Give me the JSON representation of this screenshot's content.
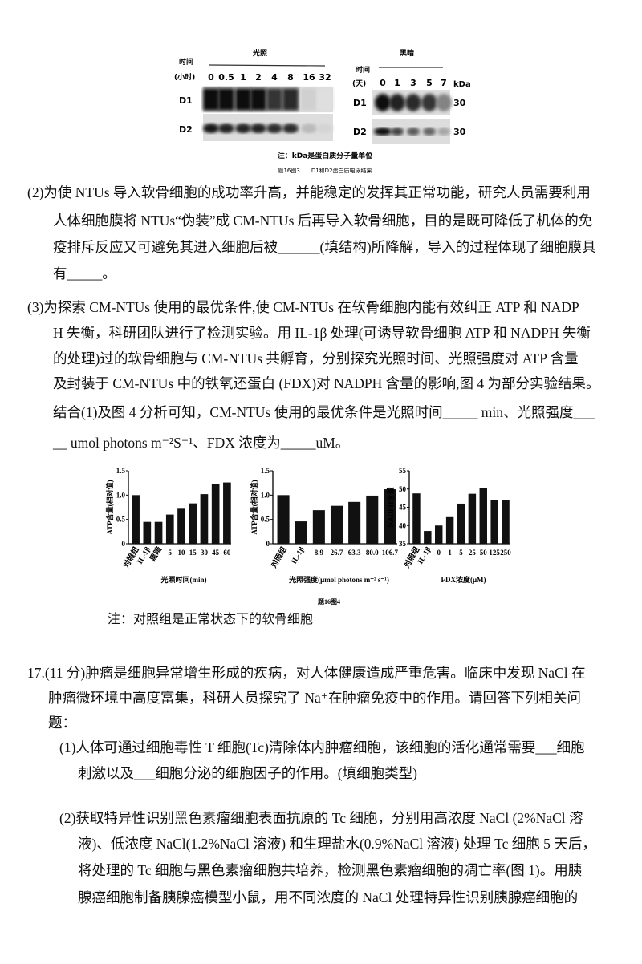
{
  "figure3": {
    "light_title": "光照",
    "dark_title": "黑暗",
    "time_label": "时间",
    "hours_label": "(小时)",
    "days_label": "(天)",
    "light_times": [
      "0",
      "0.5",
      "1",
      "2",
      "4",
      "8",
      "16",
      "32"
    ],
    "dark_times": [
      "0",
      "1",
      "3",
      "5",
      "7"
    ],
    "kda": "kDa",
    "rows": [
      "D1",
      "D2"
    ],
    "kda_values": [
      "30",
      "30"
    ],
    "light_band_intensity": {
      "D1": [
        1,
        1,
        1,
        1,
        0.8,
        0.85,
        0.1,
        0.03
      ],
      "D2": [
        0.95,
        0.9,
        0.9,
        0.9,
        0.85,
        0.85,
        0.2,
        0.08
      ]
    },
    "dark_band_intensity": {
      "D1": [
        1,
        0.9,
        0.85,
        0.8,
        0.45
      ],
      "D2": [
        1,
        0.75,
        0.65,
        0.6,
        0.3
      ]
    },
    "note": "注：kDa是蛋白质分子量单位",
    "caption": "题16图3　　D1和D2蛋白质电泳结果"
  },
  "q2": {
    "lines": [
      "(2)为使 NTUs 导入软骨细胞的成功率升高，并能稳定的发挥其正常功能，研究人员需要利用",
      "人体细胞膜将 NTUs“伪装”成 CM-NTUs 后再导入软骨细胞，目的是既可降低了机体的免",
      "疫排斥反应又可避免其进入细胞后被______(填结构)所降解，导入的过程体现了细胞膜具",
      "有_____。"
    ]
  },
  "q3": {
    "lines": [
      "(3)为探索 CM-NTUs 使用的最优条件,使 CM-NTUs 在软骨细胞内能有效纠正 ATP 和 NADP",
      "H 失衡，科研团队进行了检测实验。用 IL-1β 处理(可诱导软骨细胞 ATP 和 NADPH 失衡",
      "的处理)过的软骨细胞与 CM-NTUs 共孵育，分别探究光照时间、光照强度对 ATP 含量",
      "及封装于 CM-NTUs 中的铁氧还蛋白 (FDX)对 NADPH 含量的影响,图 4 为部分实验结果。",
      "结合(1)及图 4 分析可知，CM-NTUs 使用的最优条件是光照时间_____ min、光照强度___",
      "__ umol photons m⁻²S⁻¹、FDX 浓度为_____uM。"
    ]
  },
  "chart_data": [
    {
      "type": "bar",
      "categories": [
        "对照组",
        "IL-1β",
        "黑暗",
        "5",
        "10",
        "15",
        "30",
        "45",
        "60"
      ],
      "values": [
        1.0,
        0.45,
        0.45,
        0.6,
        0.72,
        0.83,
        1.02,
        1.22,
        1.26
      ],
      "ylabel": "ATP含量(相对值)",
      "xlabel": "光照时间(min)",
      "ylim": [
        0,
        1.5
      ],
      "yticks": [
        "0",
        "0.5",
        "1.0",
        "1.5"
      ]
    },
    {
      "type": "bar",
      "categories": [
        "对照组",
        "IL-1β",
        "8.9",
        "26.7",
        "63.3",
        "80.0",
        "106.7"
      ],
      "values": [
        1.0,
        0.46,
        0.69,
        0.78,
        0.86,
        0.99,
        1.12
      ],
      "ylabel": "ATP含量(相对值)",
      "xlabel": "光照强度(μmol photons m⁻² s⁻¹)",
      "ylim": [
        0,
        1.5
      ],
      "yticks": [
        "0",
        "0.5",
        "1.0",
        "1.5"
      ]
    },
    {
      "type": "bar",
      "categories": [
        "对照组",
        "IL-1β",
        "0",
        "1",
        "5",
        "25",
        "50",
        "125",
        "250"
      ],
      "values": [
        48.8,
        38.5,
        40.0,
        42.3,
        46.0,
        48.7,
        50.3,
        47.0,
        46.9
      ],
      "ylabel": "NADPH含量",
      "xlabel": "FDX浓度(μM)",
      "ylim": [
        35,
        55
      ],
      "yticks": [
        "35",
        "40",
        "45",
        "50",
        "55"
      ]
    }
  ],
  "figure4_caption": "题16图4",
  "figure4_note": "注：对照组是正常状态下的软骨细胞",
  "q17": {
    "lines": [
      "17.(11 分)肿瘤是细胞异常增生形成的疾病，对人体健康造成严重危害。临床中发现 NaCl 在",
      "肿瘤微环境中高度富集，科研人员探究了 Na⁺在肿瘤免疫中的作用。请回答下列相关问",
      "题："
    ],
    "sub1": [
      "(1)人体可通过细胞毒性 T 细胞(Tc)清除体内肿瘤细胞，该细胞的活化通常需要___细胞",
      "刺激以及___细胞分泌的细胞因子的作用。(填细胞类型)"
    ],
    "sub2": [
      "(2)获取特异性识别黑色素瘤细胞表面抗原的 Tc 细胞，分别用高浓度 NaCl (2%NaCl 溶",
      "液)、低浓度 NaCl(1.2%NaCl 溶液) 和生理盐水(0.9%NaCl 溶液) 处理 Tc 细胞 5 天后，",
      "将处理的 Tc 细胞与黑色素瘤细胞共培养，检测黑色素瘤细胞的凋亡率(图 1)。用胰",
      "腺癌细胞制备胰腺癌模型小鼠，用不同浓度的 NaCl 处理特异性识别胰腺癌细胞的"
    ]
  }
}
